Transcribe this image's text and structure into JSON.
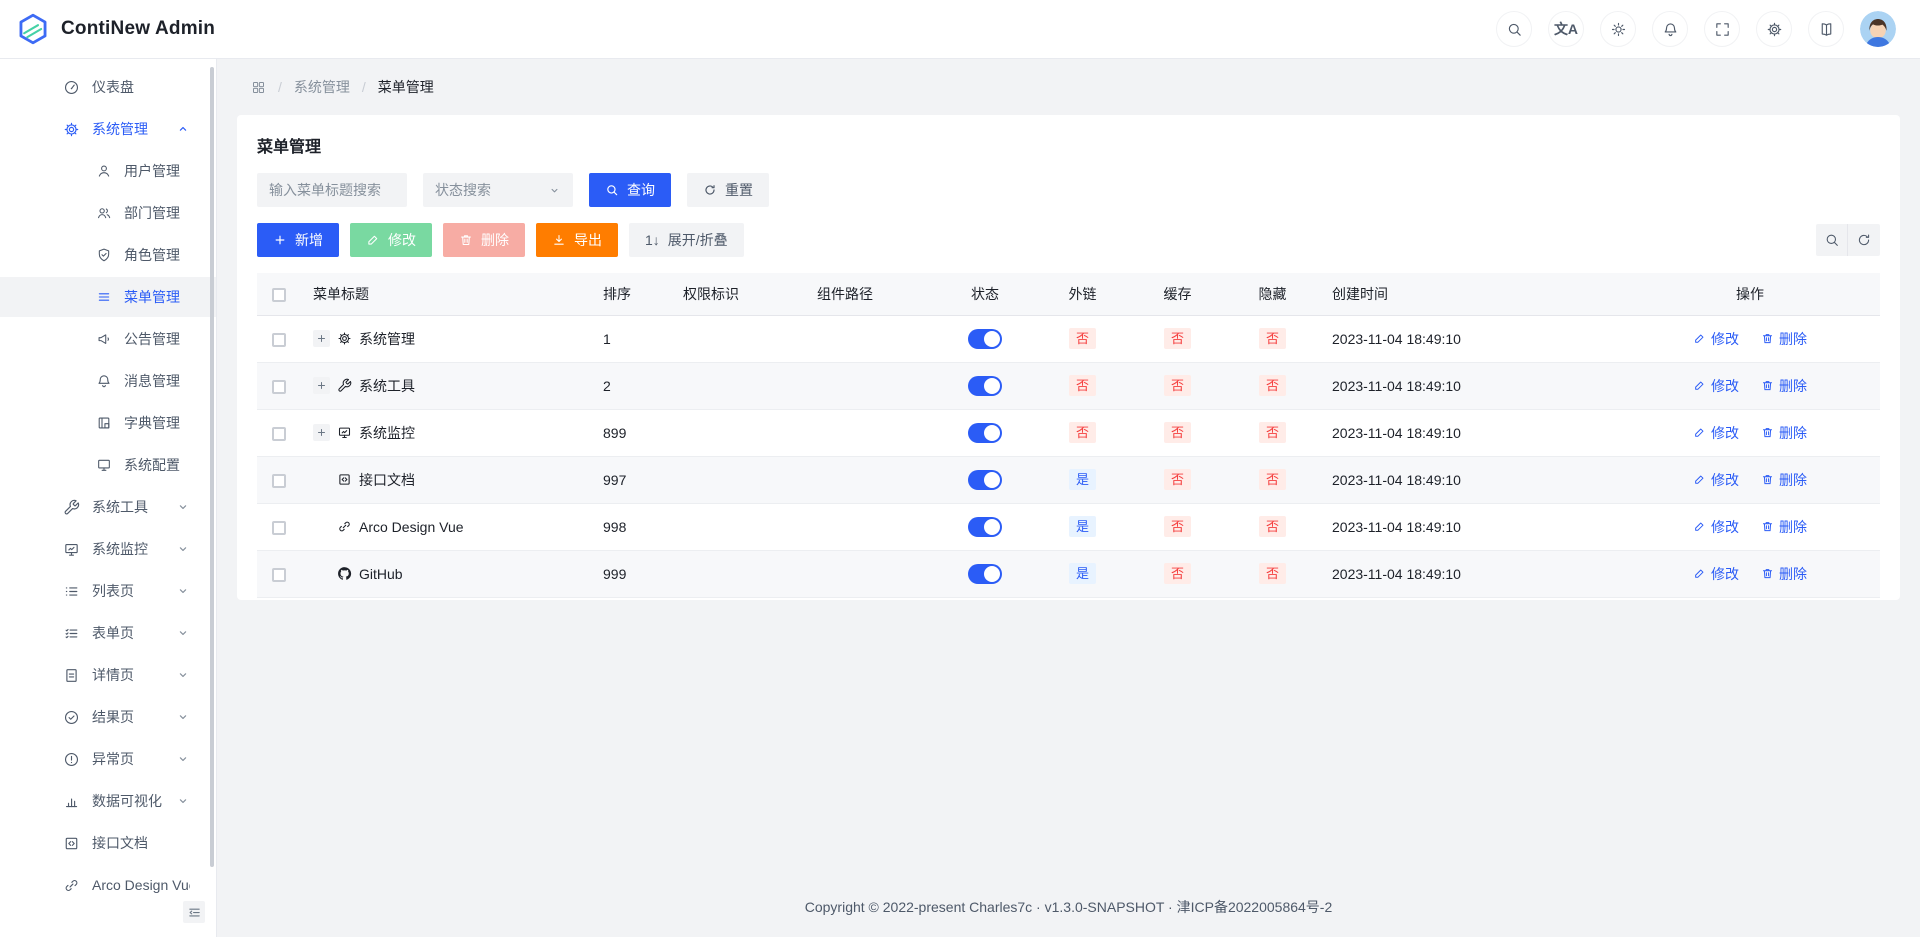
{
  "app": {
    "title": "ContiNew Admin"
  },
  "header": {
    "actions": [
      {
        "key": "search",
        "icon": "search-icon"
      },
      {
        "key": "language",
        "icon": "translate-icon"
      },
      {
        "key": "theme",
        "icon": "sun-icon"
      },
      {
        "key": "notifications",
        "icon": "bell-icon"
      },
      {
        "key": "fullscreen",
        "icon": "fullscreen-icon"
      },
      {
        "key": "settings",
        "icon": "gear-icon"
      },
      {
        "key": "docs",
        "icon": "book-icon"
      }
    ],
    "avatar": "user-avatar"
  },
  "sidebar": {
    "items": [
      {
        "key": "dashboard",
        "label": "仪表盘",
        "icon": "gauge",
        "level": 1
      },
      {
        "key": "system-management",
        "label": "系统管理",
        "icon": "gear",
        "level": 1,
        "open": true,
        "chevron": "up"
      },
      {
        "key": "user-management",
        "label": "用户管理",
        "icon": "user",
        "level": 2
      },
      {
        "key": "dept-management",
        "label": "部门管理",
        "icon": "users",
        "level": 2
      },
      {
        "key": "role-management",
        "label": "角色管理",
        "icon": "shield",
        "level": 2
      },
      {
        "key": "menu-management",
        "label": "菜单管理",
        "icon": "menu",
        "level": 2,
        "selected": true
      },
      {
        "key": "announcement",
        "label": "公告管理",
        "icon": "megaphone",
        "level": 2
      },
      {
        "key": "message",
        "label": "消息管理",
        "icon": "bell",
        "level": 2
      },
      {
        "key": "dict-management",
        "label": "字典管理",
        "icon": "dict",
        "level": 2
      },
      {
        "key": "system-config",
        "label": "系统配置",
        "icon": "desktop",
        "level": 2
      },
      {
        "key": "system-tools",
        "label": "系统工具",
        "icon": "wrench",
        "level": 1,
        "chevron": "down"
      },
      {
        "key": "system-monitor",
        "label": "系统监控",
        "icon": "monitor",
        "level": 1,
        "chevron": "down"
      },
      {
        "key": "list-page",
        "label": "列表页",
        "icon": "list",
        "level": 1,
        "chevron": "down"
      },
      {
        "key": "form-page",
        "label": "表单页",
        "icon": "form",
        "level": 1,
        "chevron": "down"
      },
      {
        "key": "detail-page",
        "label": "详情页",
        "icon": "file",
        "level": 1,
        "chevron": "down"
      },
      {
        "key": "result-page",
        "label": "结果页",
        "icon": "check-circle",
        "level": 1,
        "chevron": "down"
      },
      {
        "key": "exception-page",
        "label": "异常页",
        "icon": "warn-circle",
        "level": 1,
        "chevron": "down"
      },
      {
        "key": "data-visualization",
        "label": "数据可视化",
        "icon": "bar-chart",
        "level": 1,
        "chevron": "down"
      },
      {
        "key": "api-docs",
        "label": "接口文档",
        "icon": "code",
        "level": 1
      },
      {
        "key": "arco-design-vue",
        "label": "Arco Design Vue",
        "icon": "link",
        "level": 1
      }
    ]
  },
  "breadcrumb": {
    "items": [
      "系统管理",
      "菜单管理"
    ]
  },
  "page": {
    "title": "菜单管理",
    "filters": {
      "keyword_placeholder": "输入菜单标题搜索",
      "status_placeholder": "状态搜索",
      "query": "查询",
      "reset": "重置"
    },
    "toolbar": {
      "add": "新增",
      "edit": "修改",
      "delete": "删除",
      "export": "导出",
      "expand": "展开/折叠"
    },
    "table": {
      "columns": [
        "菜单标题",
        "排序",
        "权限标识",
        "组件路径",
        "状态",
        "外链",
        "缓存",
        "隐藏",
        "创建时间",
        "操作"
      ],
      "row_actions": {
        "edit": "修改",
        "delete": "删除"
      },
      "rows": [
        {
          "title": "系统管理",
          "icon": "gear",
          "expandable": true,
          "sort": "1",
          "perm": "",
          "path": "",
          "status": "on",
          "external": "否",
          "external_type": "danger",
          "cache": "否",
          "hidden": "否",
          "created": "2023-11-04 18:49:10"
        },
        {
          "title": "系统工具",
          "icon": "wrench",
          "expandable": true,
          "sort": "2",
          "perm": "",
          "path": "",
          "status": "on",
          "external": "否",
          "external_type": "danger",
          "cache": "否",
          "hidden": "否",
          "created": "2023-11-04 18:49:10"
        },
        {
          "title": "系统监控",
          "icon": "monitor",
          "expandable": true,
          "sort": "899",
          "perm": "",
          "path": "",
          "status": "on",
          "external": "否",
          "external_type": "danger",
          "cache": "否",
          "hidden": "否",
          "created": "2023-11-04 18:49:10"
        },
        {
          "title": "接口文档",
          "icon": "code",
          "expandable": false,
          "sort": "997",
          "perm": "",
          "path": "",
          "status": "on",
          "external": "是",
          "external_type": "info",
          "cache": "否",
          "hidden": "否",
          "created": "2023-11-04 18:49:10"
        },
        {
          "title": "Arco Design Vue",
          "icon": "link",
          "expandable": false,
          "sort": "998",
          "perm": "",
          "path": "",
          "status": "on",
          "external": "是",
          "external_type": "info",
          "cache": "否",
          "hidden": "否",
          "created": "2023-11-04 18:49:10"
        },
        {
          "title": "GitHub",
          "icon": "github",
          "expandable": false,
          "sort": "999",
          "perm": "",
          "path": "",
          "status": "on",
          "external": "是",
          "external_type": "info",
          "cache": "否",
          "hidden": "否",
          "created": "2023-11-04 18:49:10"
        }
      ]
    }
  },
  "footer": {
    "text": "Copyright © 2022-present Charles7c · v1.3.0-SNAPSHOT · 津ICP备2022005864号-2"
  },
  "colors": {
    "accent": "#2B5CF6",
    "danger": "#F53F3F",
    "danger_bg": "#FFECE8",
    "info_bg": "#E8F3FF",
    "success_btn_disabled": "#79D9A1",
    "danger_btn_disabled": "#F7ACA4",
    "warning": "#FF7D00",
    "page_bg": "#F2F3F5",
    "border": "#E5E6EB"
  }
}
